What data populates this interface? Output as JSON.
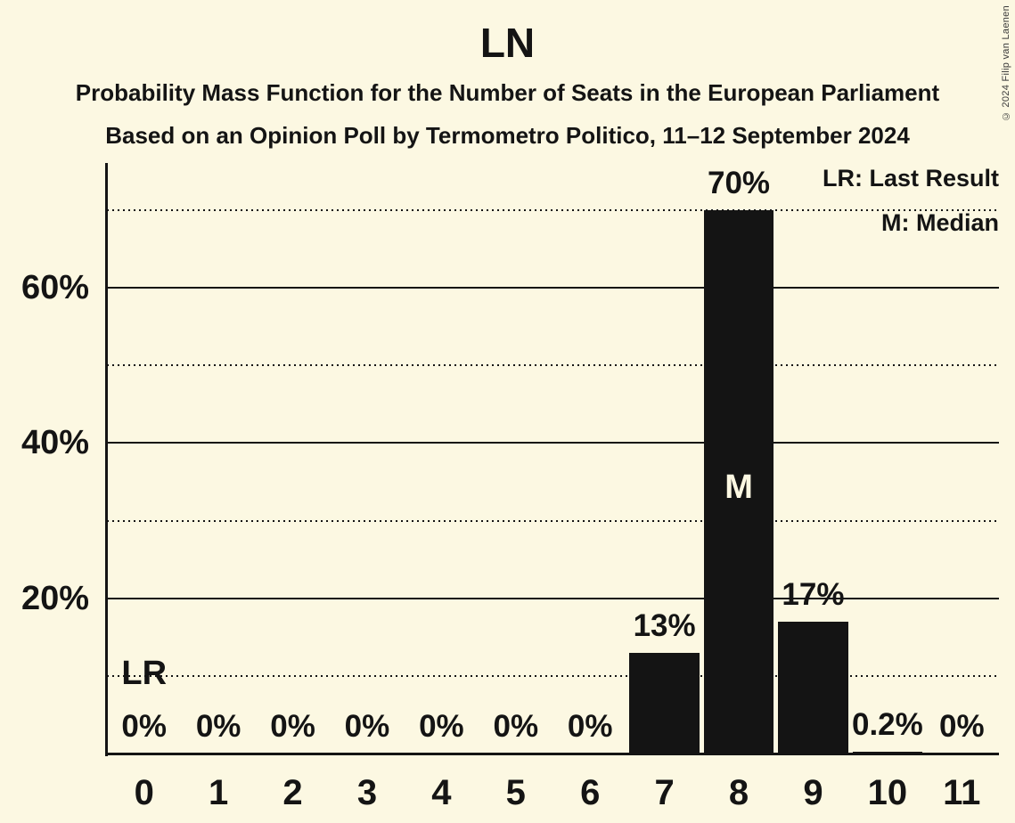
{
  "title": "LN",
  "subtitle_line1": "Probability Mass Function for the Number of Seats in the European Parliament",
  "subtitle_line2": "Based on an Opinion Poll by Termometro Politico, 11–12 September 2024",
  "copyright_notice": "© 2024 Filip van Laenen",
  "legend": {
    "last_result": "LR: Last Result",
    "median": "M: Median"
  },
  "colors": {
    "background": "#FCF8E2",
    "bar": "#141414",
    "text": "#141414",
    "median_label_on_bar": "#FCF8E2"
  },
  "chart_data": {
    "type": "bar",
    "title": "LN",
    "xlabel": "",
    "ylabel": "",
    "categories": [
      "0",
      "1",
      "2",
      "3",
      "4",
      "5",
      "6",
      "7",
      "8",
      "9",
      "10",
      "11"
    ],
    "values": [
      0,
      0,
      0,
      0,
      0,
      0,
      0,
      13,
      70,
      17,
      0.2,
      0
    ],
    "value_labels": [
      "0%",
      "0%",
      "0%",
      "0%",
      "0%",
      "0%",
      "0%",
      "13%",
      "70%",
      "17%",
      "0.2%",
      "0%"
    ],
    "ylim": [
      0,
      76
    ],
    "gridlines": {
      "solid": [
        20,
        40,
        60
      ],
      "dotted": [
        10,
        30,
        50,
        70
      ]
    },
    "ytick_labels": [
      {
        "value": 20,
        "label": "20%"
      },
      {
        "value": 40,
        "label": "40%"
      },
      {
        "value": 60,
        "label": "60%"
      }
    ],
    "legend_position": "top-right",
    "annotations": {
      "last_result": {
        "seat": "0",
        "label": "LR"
      },
      "median": {
        "seat": "8",
        "label": "M"
      }
    }
  }
}
